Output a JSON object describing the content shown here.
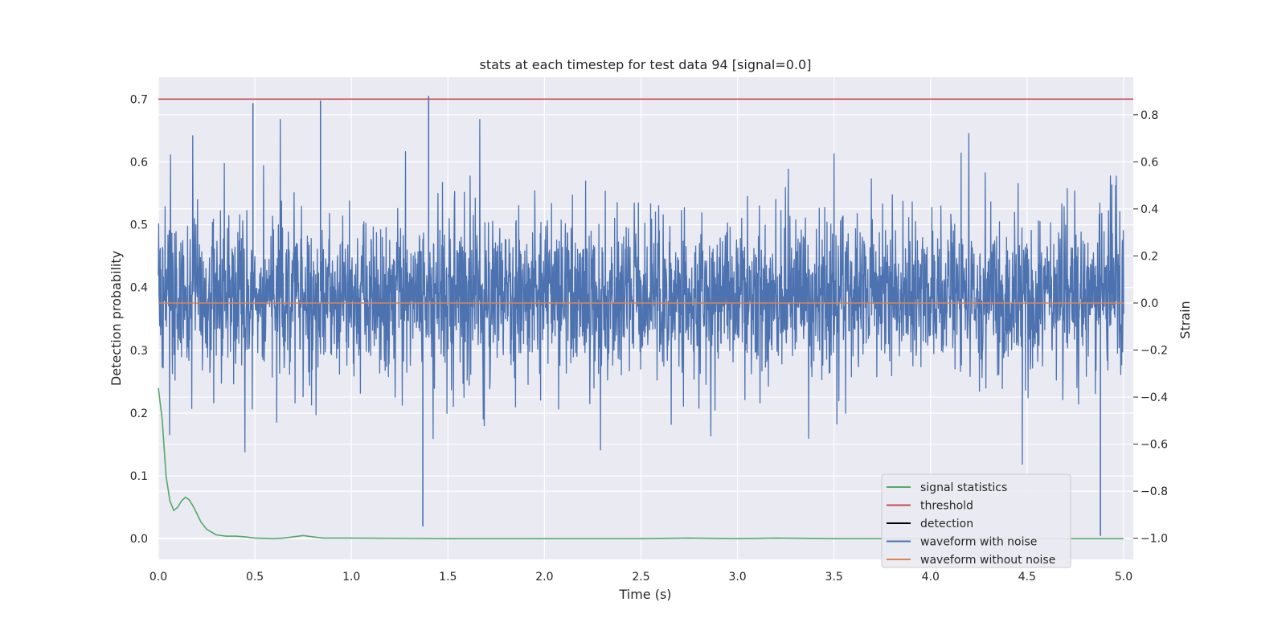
{
  "chart_data": {
    "type": "line",
    "title": "stats at each timestep for test data 94 [signal=0.0]",
    "xlabel": "Time (s)",
    "ylabel": "Detection probability",
    "y2label": "Strain",
    "xlim": [
      0.0,
      5.05
    ],
    "ylim": [
      -0.033,
      0.735
    ],
    "y2lim": [
      -1.09,
      0.96
    ],
    "xticks": [
      "0.0",
      "0.5",
      "1.0",
      "1.5",
      "2.0",
      "2.5",
      "3.0",
      "3.5",
      "4.0",
      "4.5",
      "5.0"
    ],
    "yticks": [
      "0.0",
      "0.1",
      "0.2",
      "0.3",
      "0.4",
      "0.5",
      "0.6",
      "0.7"
    ],
    "y2ticks": [
      "−1.0",
      "−0.8",
      "−0.6",
      "−0.4",
      "−0.2",
      "0.0",
      "0.2",
      "0.4",
      "0.6",
      "0.8"
    ],
    "grid": true,
    "legend_position": "lower-right",
    "threshold": 0.7,
    "series": [
      {
        "name": "signal statistics",
        "axis": "left",
        "color": "#55a868",
        "x": [
          0.0,
          0.02,
          0.04,
          0.06,
          0.08,
          0.1,
          0.12,
          0.14,
          0.16,
          0.18,
          0.2,
          0.22,
          0.25,
          0.3,
          0.35,
          0.4,
          0.45,
          0.5,
          0.6,
          0.65,
          0.7,
          0.75,
          0.8,
          0.85,
          1.0,
          1.5,
          2.0,
          2.5,
          2.75,
          3.0,
          3.2,
          3.5,
          4.0,
          4.5,
          5.0
        ],
        "y": [
          0.24,
          0.19,
          0.1,
          0.06,
          0.045,
          0.05,
          0.06,
          0.066,
          0.062,
          0.052,
          0.04,
          0.027,
          0.015,
          0.006,
          0.004,
          0.004,
          0.003,
          0.001,
          0.0,
          0.001,
          0.003,
          0.005,
          0.003,
          0.001,
          0.001,
          0.0,
          0.0,
          0.0,
          0.001,
          0.0,
          0.001,
          0.0,
          0.0,
          0.0,
          0.0
        ]
      },
      {
        "name": "threshold",
        "axis": "left",
        "color": "#c44e52",
        "x": [
          0.0,
          5.05
        ],
        "y": [
          0.7,
          0.7
        ]
      },
      {
        "name": "detection",
        "axis": "left",
        "color": "#000000",
        "x": [],
        "y": []
      },
      {
        "name": "waveform with noise",
        "axis": "right",
        "color": "#4c72b0",
        "x_range": [
          0.0,
          5.0
        ],
        "description": "dense noise trace, strain mostly within -0.4..0.5, extremes about -0.99 and 0.88",
        "extremes": [
          {
            "x": 1.37,
            "y": -0.95
          },
          {
            "x": 1.4,
            "y": 0.88
          },
          {
            "x": 4.88,
            "y": -0.99
          },
          {
            "x": 0.84,
            "y": 0.86
          },
          {
            "x": 0.49,
            "y": 0.85
          }
        ]
      },
      {
        "name": "waveform without noise",
        "axis": "right",
        "color": "#dd8452",
        "x": [
          0.0,
          5.0
        ],
        "y": [
          0.0,
          0.0
        ]
      }
    ]
  }
}
